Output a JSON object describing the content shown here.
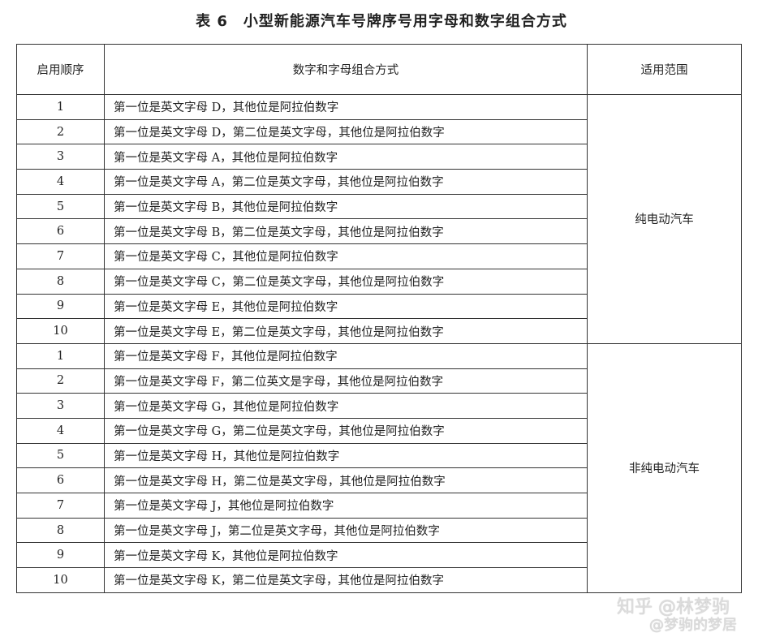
{
  "title": "表 6　小型新能源汽车号牌序号用字母和数字组合方式",
  "headers": [
    "启用顺序",
    "数字和字母组合方式",
    "适用范围"
  ],
  "groups": [
    {
      "scope": "纯电动汽车",
      "rows": [
        [
          "1",
          "第一位是英文字母 D，其他位是阿拉伯数字"
        ],
        [
          "2",
          "第一位是英文字母 D，第二位是英文字母，其他位是阿拉伯数字"
        ],
        [
          "3",
          "第一位是英文字母 A，其他位是阿拉伯数字"
        ],
        [
          "4",
          "第一位是英文字母 A，第二位是英文字母，其他位是阿拉伯数字"
        ],
        [
          "5",
          "第一位是英文字母 B，其他位是阿拉伯数字"
        ],
        [
          "6",
          "第一位是英文字母 B，第二位是英文字母，其他位是阿拉伯数字"
        ],
        [
          "7",
          "第一位是英文字母 C，其他位是阿拉伯数字"
        ],
        [
          "8",
          "第一位是英文字母 C，第二位是英文字母，其他位是阿拉伯数字"
        ],
        [
          "9",
          "第一位是英文字母 E，其他位是阿拉伯数字"
        ],
        [
          "10",
          "第一位是英文字母 E，第二位是英文字母，其他位是阿拉伯数字"
        ]
      ]
    },
    {
      "scope": "非纯电动汽车",
      "rows": [
        [
          "1",
          "第一位是英文字母 F，其他位是阿拉伯数字"
        ],
        [
          "2",
          "第一位是英文字母 F，第二位英文是字母，其他位是阿拉伯数字"
        ],
        [
          "3",
          "第一位是英文字母 G，其他位是阿拉伯数字"
        ],
        [
          "4",
          "第一位是英文字母 G，第二位是英文字母，其他位是阿拉伯数字"
        ],
        [
          "5",
          "第一位是英文字母 H，其他位是阿拉伯数字"
        ],
        [
          "6",
          "第一位是英文字母 H，第二位是英文字母，其他位是阿拉伯数字"
        ],
        [
          "7",
          "第一位是英文字母 J，其他位是阿拉伯数字"
        ],
        [
          "8",
          "第一位是英文字母 J，第二位是英文字母，其他位是阿拉伯数字"
        ],
        [
          "9",
          "第一位是英文字母 K，其他位是阿拉伯数字"
        ],
        [
          "10",
          "第一位是英文字母 K，第二位是英文字母，其他位是阿拉伯数字"
        ]
      ]
    }
  ],
  "watermark": {
    "line1": "知乎 @林梦驹",
    "line2": "@梦驹的梦居"
  }
}
